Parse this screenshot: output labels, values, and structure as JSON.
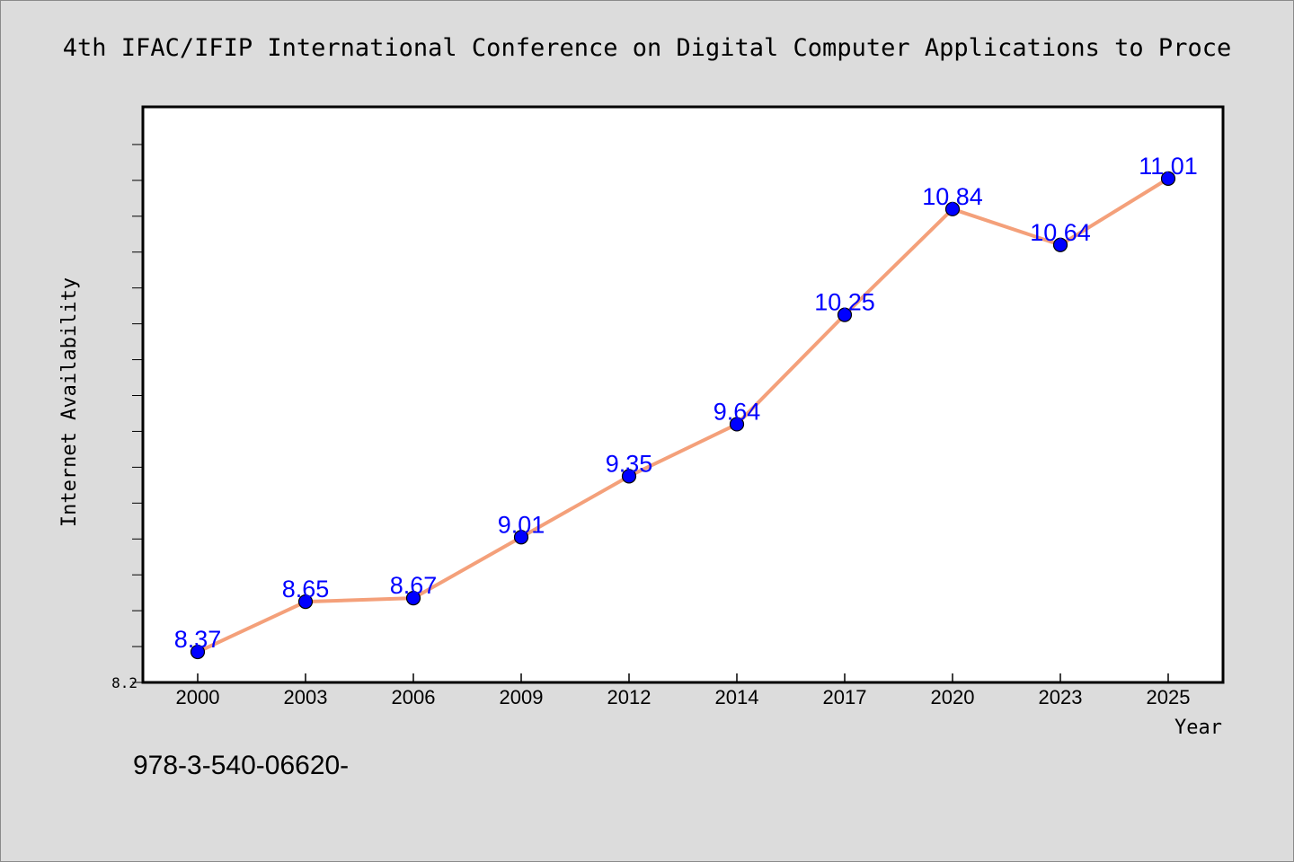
{
  "chart_data": {
    "type": "line",
    "title": "4th IFAC/IFIP International Conference on Digital Computer Applications to Proce",
    "xlabel": "Year",
    "ylabel": "Internet Availability",
    "categories": [
      "2000",
      "2003",
      "2006",
      "2009",
      "2012",
      "2014",
      "2017",
      "2020",
      "2023",
      "2025"
    ],
    "series": [
      {
        "values": [
          8.37,
          8.65,
          8.67,
          9.01,
          9.35,
          9.64,
          10.25,
          10.84,
          10.64,
          11.01
        ],
        "data_labels": [
          "8.37",
          "8.65",
          "8.67",
          "9.01",
          "9.35",
          "9.64",
          "10.25",
          "10.84",
          "10.64",
          "11.01"
        ],
        "line_color": "#f4a07a",
        "marker_color": "#0000ff"
      }
    ],
    "ylim": [
      8.2,
      11.41
    ],
    "yticks_labeled": [
      "8.2"
    ],
    "y_minor_tick_step": 0.2,
    "grid": false,
    "plot_background": "#ffffff",
    "page_background": "#dcdcdc",
    "label_color": "#0000ff"
  },
  "footer": {
    "text": "978-3-540-06620-"
  }
}
